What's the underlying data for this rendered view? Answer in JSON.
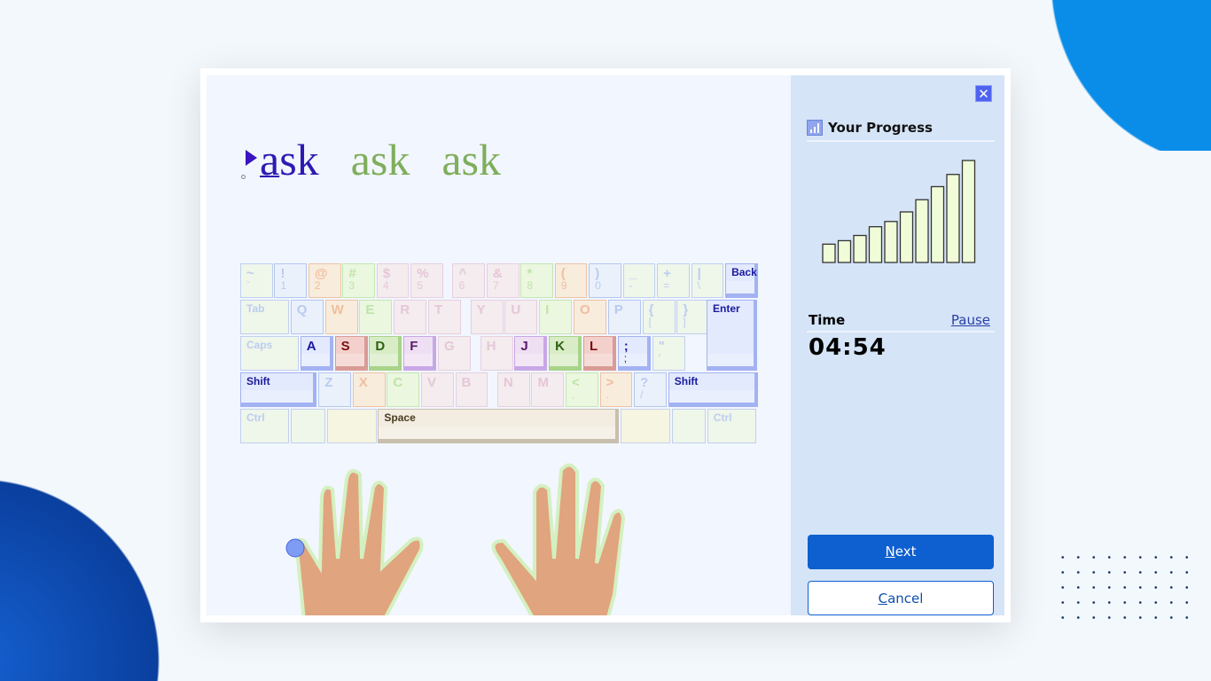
{
  "lesson": {
    "words": [
      "ask",
      "ask",
      "ask"
    ],
    "current_letter": "a"
  },
  "colors": {
    "blue": {
      "bg": "#ebf1fb",
      "border": "#b3c6ee",
      "text": "#b9cbef"
    },
    "orange": {
      "bg": "#f8ecdc",
      "border": "#edc3a4",
      "text": "#f0bea0"
    },
    "green": {
      "bg": "#ebf7df",
      "border": "#c5e6b4",
      "text": "#bfe4aa"
    },
    "pink": {
      "bg": "#f4ecee",
      "border": "#e6cfe0",
      "text": "#e6c6d9"
    },
    "beige": {
      "bg": "#f5f5e2",
      "border": "#c9d2ea",
      "text": "#c9d2ea"
    },
    "plain": {
      "bg": "#eff6ea",
      "border": "#c0d0ee",
      "text": "#bccdef"
    },
    "active_blue": {
      "bg": "#e3eafe",
      "border": "#a3b2f2",
      "text": "#1a1a9e"
    },
    "active_red": {
      "bg": "#f3d0cc",
      "border": "#d99b96",
      "text": "#7a1010"
    },
    "active_green": {
      "bg": "#d8edc6",
      "border": "#a8d38a",
      "text": "#2f5e12"
    },
    "active_purple": {
      "bg": "#efdff3",
      "border": "#c8a7e6",
      "text": "#5a1a6a"
    },
    "space": {
      "bg": "#f3ece0",
      "border": "#c9bfae",
      "text": "#4a3a20"
    }
  },
  "keyboard": {
    "rows": [
      [
        {
          "l": "~",
          "s": "`",
          "c": "plain"
        },
        {
          "l": "!",
          "s": "1",
          "c": "blue"
        },
        {
          "l": "@",
          "s": "2",
          "c": "orange"
        },
        {
          "l": "#",
          "s": "3",
          "c": "green"
        },
        {
          "l": "$",
          "s": "4",
          "c": "pink"
        },
        {
          "l": "%",
          "s": "5",
          "c": "pink"
        },
        {
          "l": "^",
          "s": "6",
          "c": "pink"
        },
        {
          "l": "&",
          "s": "7",
          "c": "pink"
        },
        {
          "l": "*",
          "s": "8",
          "c": "green"
        },
        {
          "l": "(",
          "s": "9",
          "c": "orange"
        },
        {
          "l": ")",
          "s": "0",
          "c": "blue"
        },
        {
          "l": "_",
          "s": "-",
          "c": "plain"
        },
        {
          "l": "+",
          "s": "=",
          "c": "plain"
        },
        {
          "l": "|",
          "s": "\\",
          "c": "plain"
        },
        {
          "l": "Back",
          "c": "active_blue"
        }
      ],
      [
        {
          "l": "Tab",
          "c": "plain"
        },
        {
          "l": "Q",
          "c": "blue"
        },
        {
          "l": "W",
          "c": "orange"
        },
        {
          "l": "E",
          "c": "green"
        },
        {
          "l": "R",
          "c": "pink"
        },
        {
          "l": "T",
          "c": "pink"
        },
        {
          "l": "Y",
          "c": "pink"
        },
        {
          "l": "U",
          "c": "pink"
        },
        {
          "l": "I",
          "c": "green"
        },
        {
          "l": "O",
          "c": "orange"
        },
        {
          "l": "P",
          "c": "blue"
        },
        {
          "l": "{",
          "s": "[",
          "c": "plain"
        },
        {
          "l": "}",
          "s": "]",
          "c": "plain"
        }
      ],
      [
        {
          "l": "Caps",
          "c": "plain"
        },
        {
          "l": "A",
          "c": "active_blue"
        },
        {
          "l": "S",
          "c": "active_red"
        },
        {
          "l": "D",
          "c": "active_green"
        },
        {
          "l": "F",
          "c": "active_purple"
        },
        {
          "l": "G",
          "c": "pink"
        },
        {
          "l": "H",
          "c": "pink"
        },
        {
          "l": "J",
          "c": "active_purple"
        },
        {
          "l": "K",
          "c": "active_green"
        },
        {
          "l": "L",
          "c": "active_red"
        },
        {
          "l": ";",
          "s": ";",
          "c": "active_blue"
        },
        {
          "l": "\"",
          "s": "'",
          "c": "plain"
        }
      ],
      [
        {
          "l": "Shift",
          "c": "active_blue"
        },
        {
          "l": "Z",
          "c": "blue"
        },
        {
          "l": "X",
          "c": "orange"
        },
        {
          "l": "C",
          "c": "green"
        },
        {
          "l": "V",
          "c": "pink"
        },
        {
          "l": "B",
          "c": "pink"
        },
        {
          "l": "N",
          "c": "pink"
        },
        {
          "l": "M",
          "c": "pink"
        },
        {
          "l": "<",
          "s": ",",
          "c": "green"
        },
        {
          "l": ">",
          "s": ".",
          "c": "orange"
        },
        {
          "l": "?",
          "s": "/",
          "c": "blue"
        },
        {
          "l": "Shift",
          "c": "active_blue"
        }
      ],
      [
        {
          "l": "Ctrl",
          "c": "plain"
        },
        {
          "l": "",
          "c": "plain"
        },
        {
          "l": "",
          "c": "beige"
        },
        {
          "l": "Space",
          "c": "space"
        },
        {
          "l": "",
          "c": "beige"
        },
        {
          "l": "",
          "c": "plain"
        },
        {
          "l": "Ctrl",
          "c": "plain"
        }
      ]
    ],
    "enter": {
      "l": "Enter",
      "c": "active_blue"
    }
  },
  "sidebar": {
    "close_icon": "close-icon",
    "progress_title": "Your Progress",
    "progress_icon": "bar-chart-icon",
    "time_label": "Time",
    "pause_label": "Pause",
    "time_value": "04:54",
    "next_label": "Next",
    "cancel_label": "Cancel"
  },
  "chart_data": {
    "type": "bar",
    "values": [
      21,
      25,
      31,
      41,
      47,
      58,
      72,
      87,
      101,
      117
    ],
    "bar_color": "#f0fcd8",
    "edge_color": "#333333"
  }
}
